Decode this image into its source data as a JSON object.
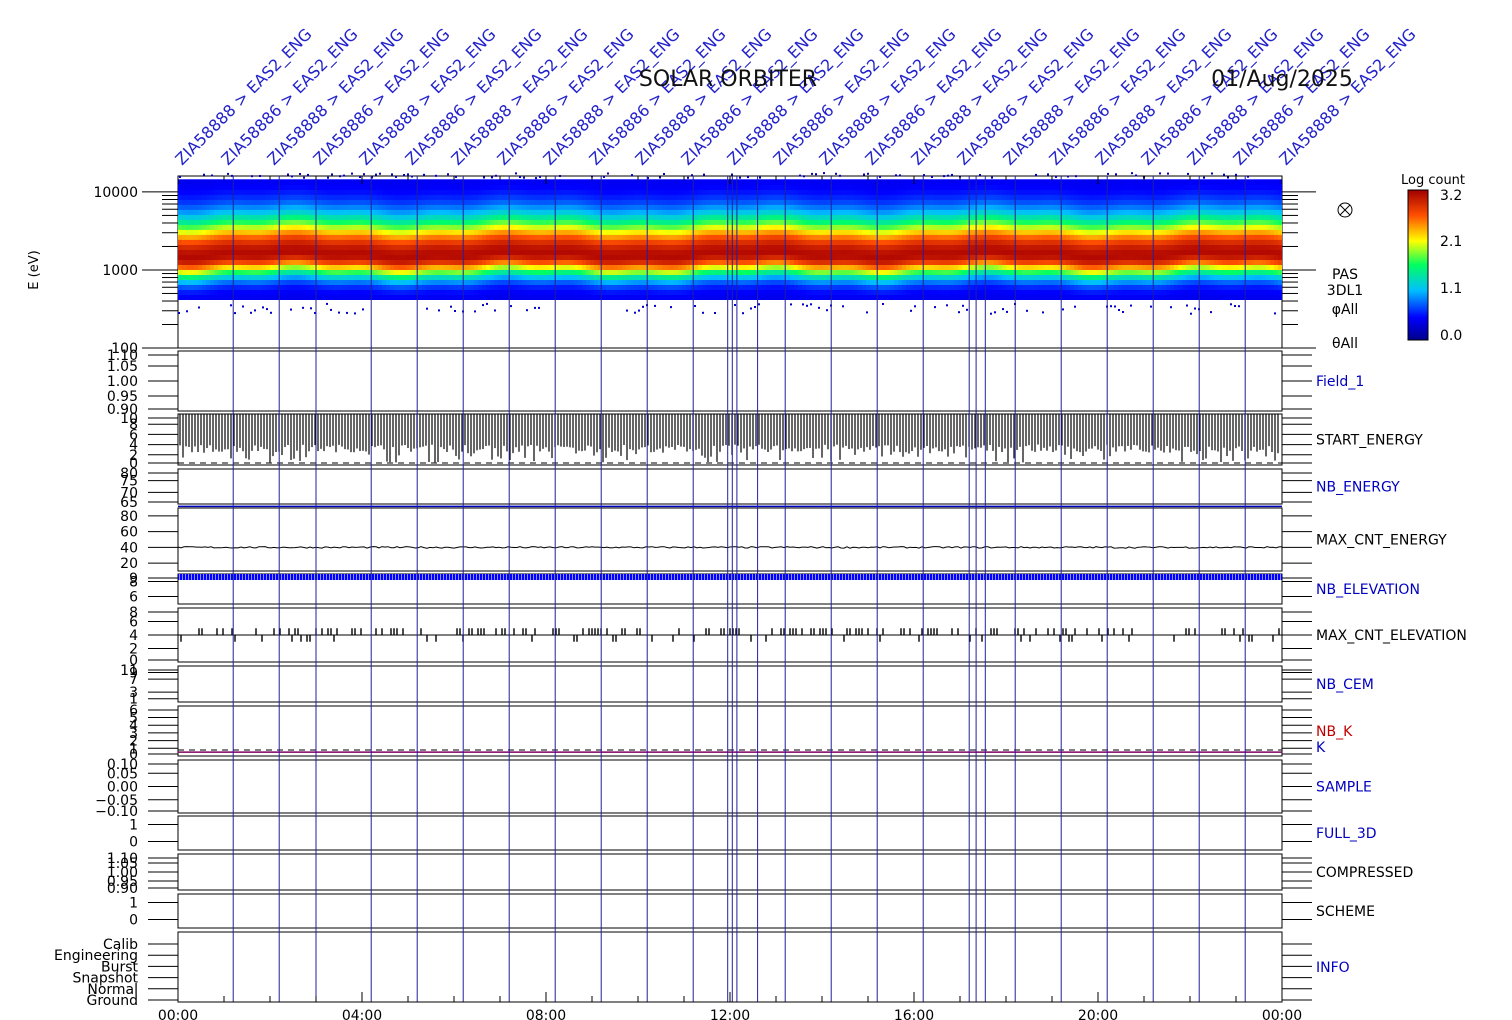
{
  "title": "SOLAR ORBITER",
  "date": "01/Aug/2025",
  "ylabel_spectrogram": "E (eV)",
  "colorbar": {
    "label": "Log count",
    "ticks": [
      "3.2",
      "2.1",
      "1.1",
      "0.0"
    ]
  },
  "spectrogram_side_labels": [
    "PAS",
    "3DL1",
    "φAll",
    "θAll"
  ],
  "top_marker_labels": [
    "ZIA58888 > EAS2_ENG",
    "ZIA58886 > EAS2_ENG",
    "ZIA58888 > EAS2_ENG",
    "ZIA58886 > EAS2_ENG",
    "ZIA58888 > EAS2_ENG",
    "ZIA58886 > EAS2_ENG",
    "ZIA58888 > EAS2_ENG",
    "ZIA58886 > EAS2_ENG",
    "ZIA58888 > EAS2_ENG",
    "ZIA58886 > EAS2_ENG",
    "ZIA58888 > EAS2_ENG",
    "ZIA58886 > EAS2_ENG",
    "ZIA58888 > EAS2_ENG",
    "ZIA58886 > EAS2_ENG",
    "ZIA58888 > EAS2_ENG",
    "ZIA58886 > EAS2_ENG",
    "ZIA58888 > EAS2_ENG",
    "ZIA58886 > EAS2_ENG",
    "ZIA58888 > EAS2_ENG",
    "ZIA58886 > EAS2_ENG",
    "ZIA58888 > EAS2_ENG",
    "ZIA58886 > EAS2_ENG",
    "ZIA58888 > EAS2_ENG",
    "ZIA58886 > EAS2_ENG",
    "ZIA58888 > EAS2_ENG"
  ],
  "chart_data": {
    "type": "heatmap",
    "title": "SOLAR ORBITER",
    "date": "01/Aug/2025",
    "x_axis": {
      "ticks": [
        "00:00",
        "04:00",
        "08:00",
        "12:00",
        "16:00",
        "20:00",
        "00:00"
      ],
      "range_hours": [
        0,
        24
      ]
    },
    "spectrogram": {
      "ylabel": "E (eV)",
      "y_scale": "log",
      "y_ticks": [
        "10000",
        "1000",
        "100"
      ],
      "y_range": [
        100,
        16000
      ],
      "colorbar_range": [
        0.0,
        3.2
      ],
      "peak_energy_eV": 1600,
      "side_labels": [
        "PAS",
        "3DL1",
        "φAll",
        "θAll"
      ]
    },
    "panels": [
      {
        "label": "Field_1",
        "label_color": "#0000c0",
        "y_ticks": [
          "1.10",
          "1.05",
          "1.00",
          "0.95",
          "0.90"
        ],
        "y_range": [
          0.9,
          1.1
        ],
        "trace": "none"
      },
      {
        "label": "START_ENERGY",
        "label_color": "#000000",
        "y_ticks": [
          "10",
          "8",
          "6",
          "4",
          "2",
          "0"
        ],
        "y_range": [
          0,
          10
        ],
        "trace": "bars",
        "typical_value": 2.5,
        "top_value": 10
      },
      {
        "label": "NB_ENERGY",
        "label_color": "#0000c0",
        "y_ticks": [
          "80",
          "75",
          "70",
          "65"
        ],
        "y_range": [
          65,
          80
        ],
        "trace": "flat",
        "value": 64
      },
      {
        "label": "MAX_CNT_ENERGY",
        "label_color": "#000000",
        "y_ticks": [
          "80",
          "60",
          "40",
          "20"
        ],
        "y_range": [
          10,
          90
        ],
        "trace": "line",
        "value": 40
      },
      {
        "label": "NB_ELEVATION",
        "label_color": "#0000c0",
        "y_ticks": [
          "9",
          "8",
          "6"
        ],
        "y_range": [
          5,
          9
        ],
        "trace": "dots",
        "value": 9
      },
      {
        "label": "MAX_CNT_ELEVATION",
        "label_color": "#000000",
        "y_ticks": [
          "8",
          "6",
          "4",
          "2",
          "0"
        ],
        "y_range": [
          0,
          8
        ],
        "trace": "steps",
        "value": 4
      },
      {
        "label": "NB_CEM",
        "label_color": "#0000c0",
        "y_ticks": [
          "11",
          "9",
          "7",
          "3",
          "1"
        ],
        "y_range": [
          0,
          11
        ],
        "trace": "none"
      },
      {
        "label": "NB_K",
        "label_color": "#c00000",
        "y_ticks": [
          "6",
          "5",
          "4",
          "3",
          "2",
          "1",
          "0"
        ],
        "y_range": [
          0,
          6.5
        ],
        "trace": "flat",
        "value": 0.5
      },
      {
        "label": "SAMPLE",
        "label_color": "#0000c0",
        "y_ticks": [
          "0.10",
          "0.05",
          "0.00",
          "−0.05",
          "−0.10"
        ],
        "y_range": [
          -0.1,
          0.1
        ],
        "trace": "none"
      },
      {
        "label": "FULL_3D",
        "label_color": "#0000c0",
        "y_ticks": [
          "1",
          "0"
        ],
        "y_range": [
          -0.5,
          1.5
        ],
        "trace": "none"
      },
      {
        "label": "COMPRESSED",
        "label_color": "#000000",
        "y_ticks": [
          "1.10",
          "1.05",
          "1.00",
          "0.95",
          "0.90"
        ],
        "y_range": [
          0.9,
          1.1
        ],
        "trace": "none"
      },
      {
        "label": "SCHEME",
        "label_color": "#000000",
        "y_ticks": [
          "1",
          "0"
        ],
        "y_range": [
          -0.5,
          1.5
        ],
        "trace": "none"
      },
      {
        "label": "INFO",
        "label_color": "#0000c0",
        "y_ticks": [
          "Calib",
          "Engineering",
          "Burst",
          "Snapshot",
          "Normal",
          "Ground"
        ],
        "y_range": [
          0,
          5
        ],
        "trace": "none"
      }
    ],
    "extra_label": "K",
    "event_markers_hours": [
      1.2,
      2.2,
      3.0,
      4.2,
      5.2,
      6.2,
      7.2,
      8.2,
      9.2,
      10.2,
      11.2,
      11.95,
      12.05,
      12.15,
      12.6,
      13.2,
      14.2,
      15.2,
      16.2,
      17.2,
      17.35,
      17.55,
      18.2,
      19.2,
      20.2,
      21.2,
      22.2,
      23.2
    ]
  }
}
